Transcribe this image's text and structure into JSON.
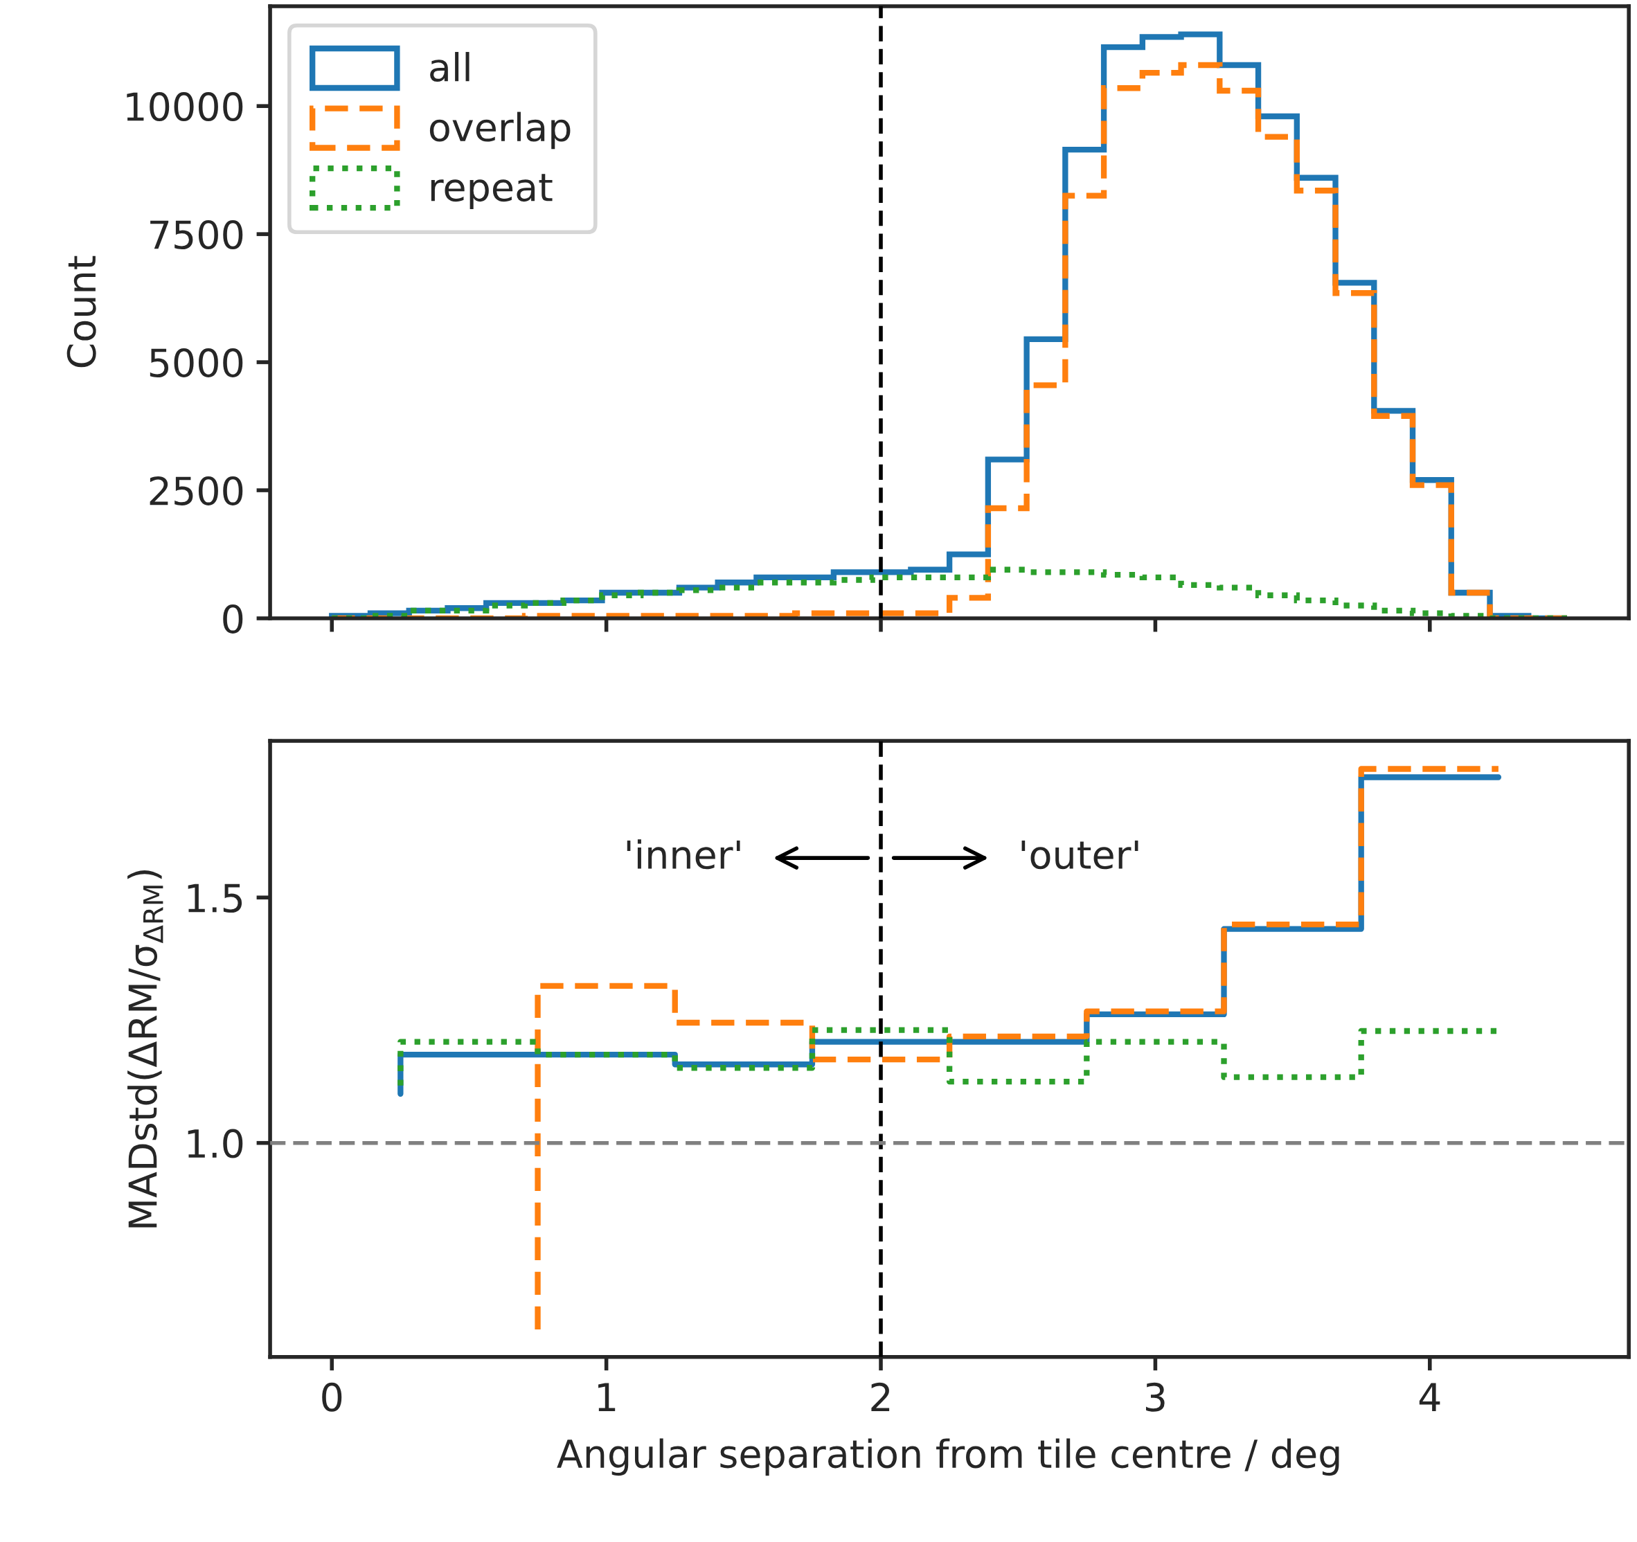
{
  "chart_data": [
    {
      "type": "histogram",
      "ylabel": "Count",
      "bins": [
        0,
        0.140625,
        0.28125,
        0.421875,
        0.5625,
        0.703125,
        0.84375,
        0.984375,
        1.125,
        1.265625,
        1.40625,
        1.546875,
        1.6875,
        1.828125,
        1.96875,
        2.109375,
        2.25,
        2.390625,
        2.53125,
        2.671875,
        2.8125,
        2.953125,
        3.09375,
        3.234375,
        3.375,
        3.515625,
        3.65625,
        3.796875,
        3.9375,
        4.078125,
        4.21875,
        4.359375,
        4.5
      ],
      "series": [
        {
          "name": "all",
          "color": "#1f77b4",
          "line_style": "solid",
          "values": [
            50,
            100,
            150,
            200,
            300,
            300,
            350,
            500,
            500,
            600,
            700,
            800,
            800,
            900,
            900,
            950,
            1250,
            3100,
            5450,
            9150,
            11150,
            11350,
            11400,
            10800,
            9800,
            8600,
            6550,
            4050,
            2700,
            500,
            50,
            0
          ]
        },
        {
          "name": "overlap",
          "color": "#ff7f0e",
          "line_style": "dashed",
          "values": [
            0,
            0,
            0,
            0,
            0,
            50,
            50,
            50,
            50,
            50,
            50,
            50,
            100,
            100,
            100,
            100,
            400,
            2150,
            4550,
            8250,
            10350,
            10650,
            10800,
            10300,
            9400,
            8350,
            6350,
            3950,
            2600,
            500,
            0,
            0
          ]
        },
        {
          "name": "repeat",
          "color": "#2ca02c",
          "line_style": "dotted",
          "values": [
            0,
            50,
            150,
            150,
            250,
            300,
            350,
            450,
            500,
            550,
            600,
            700,
            700,
            750,
            800,
            800,
            800,
            950,
            900,
            900,
            850,
            800,
            650,
            600,
            450,
            350,
            250,
            150,
            100,
            50,
            0,
            0
          ]
        }
      ],
      "xlim": [
        -0.225,
        4.725
      ],
      "xticks": [
        0,
        1,
        2,
        3,
        4
      ],
      "ylim": [
        0,
        11950
      ],
      "yticks": [
        0,
        2500,
        5000,
        7500,
        10000
      ],
      "tick_labels": "y",
      "legend": "top left",
      "ref_lines": [
        {
          "axis": "x",
          "value": 2,
          "color": "#000000",
          "line_style": "dashed"
        }
      ]
    },
    {
      "type": "step",
      "xlabel": "Angular separation from tile centre / deg",
      "ylabel": "MADstd(ΔRM/σ$_{ΔRM}$)",
      "x": [
        0.25,
        0.75,
        1.25,
        1.75,
        2.25,
        2.75,
        3.25,
        3.75,
        4.25
      ],
      "series": [
        {
          "color": "#1f77b4",
          "line_style": "solid",
          "values": [
            1.1,
            1.18,
            1.18,
            1.16,
            1.206,
            1.206,
            1.262,
            1.436,
            1.745
          ]
        },
        {
          "color": "#ff7f0e",
          "line_style": "dashed",
          "x": [
            0.75,
            1.25,
            1.75,
            2.25,
            2.75,
            3.25,
            3.75,
            4.25
          ],
          "values": [
            0.62,
            1.32,
            1.245,
            1.17,
            1.217,
            1.268,
            1.445,
            1.762
          ]
        },
        {
          "color": "#2ca02c",
          "line_style": "dotted",
          "values": [
            1.117,
            1.206,
            1.18,
            1.153,
            1.23,
            1.125,
            1.206,
            1.134,
            1.228
          ]
        }
      ],
      "xlim": [
        -0.225,
        4.725
      ],
      "xticks": [
        0,
        1,
        2,
        3,
        4
      ],
      "ylim": [
        0.564,
        1.819
      ],
      "yticks": [
        {
          "value": 1.0,
          "label": "1.0"
        },
        {
          "value": 1.5,
          "label": "1.5"
        }
      ],
      "ref_lines": [
        {
          "axis": "x",
          "value": 2,
          "color": "#000000",
          "line_style": "dashed"
        },
        {
          "axis": "y",
          "value": 1.0,
          "color": "#808080",
          "line_style": "dashed"
        }
      ],
      "annotations": [
        "'inner'",
        "'outer'"
      ]
    }
  ]
}
